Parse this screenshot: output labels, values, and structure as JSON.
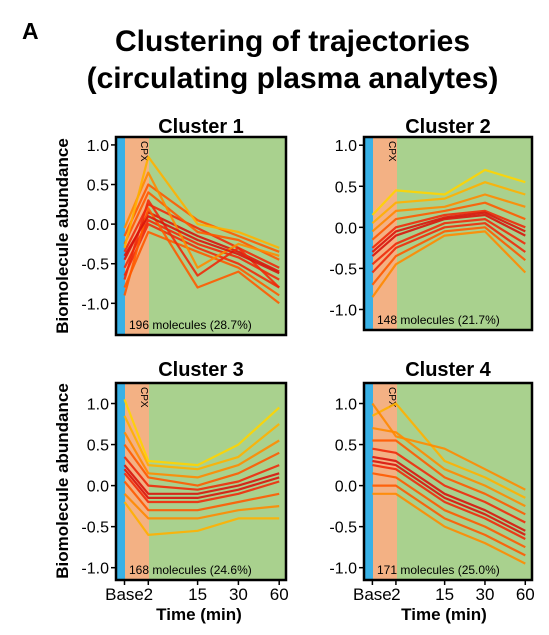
{
  "panel_letter": "A",
  "figure_title": {
    "line1": "Clustering of trajectories",
    "line2": "(circulating plasma analytes)"
  },
  "ylabel": "Biomolecule abundance",
  "xlabel": "Time (min)",
  "band_label": "CPX",
  "colors": {
    "background": "#a9d18e",
    "baseline_band": "#39b1e6",
    "cpx_band": "#f3b184",
    "frame": "#000000",
    "line_palette": [
      "#fff200",
      "#ffd400",
      "#ffb000",
      "#ff8a00",
      "#ff5a00",
      "#f02a0a",
      "#d8140c"
    ]
  },
  "chart_data": [
    {
      "type": "line",
      "title": "Cluster 1",
      "annotation": "196 molecules (28.7%)",
      "x": [
        "Base",
        "2",
        "15",
        "30",
        "60"
      ],
      "ylim": [
        -1.4,
        1.1
      ],
      "yticks": [
        "1.0",
        "0.5",
        "0.0",
        "-0.5",
        "-1.0"
      ],
      "series": [
        {
          "values": [
            -0.45,
            0.15,
            -0.15,
            -0.35,
            -0.6
          ]
        },
        {
          "values": [
            -0.35,
            0.25,
            -0.05,
            -0.3,
            -0.55
          ]
        },
        {
          "values": [
            -0.55,
            0.05,
            -0.25,
            -0.42,
            -0.7
          ]
        },
        {
          "values": [
            -0.25,
            0.4,
            -0.1,
            -0.2,
            -0.45
          ]
        },
        {
          "values": [
            -0.65,
            0.0,
            -0.3,
            -0.5,
            -0.8
          ]
        },
        {
          "values": [
            -0.15,
            0.5,
            0.05,
            -0.15,
            -0.35
          ]
        },
        {
          "values": [
            -0.8,
            -0.1,
            -0.35,
            -0.55,
            -0.9
          ]
        },
        {
          "values": [
            -0.05,
            0.65,
            -0.55,
            -0.25,
            -0.4
          ]
        },
        {
          "values": [
            -0.9,
            0.2,
            -0.8,
            -0.6,
            -1.0
          ]
        },
        {
          "values": [
            -0.3,
            0.85,
            0.0,
            -0.1,
            -0.3
          ]
        },
        {
          "values": [
            -0.7,
            0.3,
            -0.65,
            -0.3,
            -0.8
          ]
        },
        {
          "values": [
            -0.4,
            0.1,
            -0.2,
            -0.38,
            -0.62
          ]
        }
      ]
    },
    {
      "type": "line",
      "title": "Cluster 2",
      "annotation": "148 molecules (21.7%)",
      "x": [
        "Base",
        "2",
        "15",
        "30",
        "60"
      ],
      "ylim": [
        -1.25,
        1.1
      ],
      "yticks": [
        "1.0",
        "0.5",
        "0.0",
        "-0.5",
        "-1.0"
      ],
      "series": [
        {
          "values": [
            -0.35,
            -0.1,
            0.1,
            0.15,
            -0.1
          ]
        },
        {
          "values": [
            -0.25,
            0.0,
            0.15,
            0.2,
            0.0
          ]
        },
        {
          "values": [
            -0.45,
            -0.2,
            0.05,
            0.1,
            -0.2
          ]
        },
        {
          "values": [
            -0.15,
            0.1,
            0.2,
            0.3,
            0.1
          ]
        },
        {
          "values": [
            -0.55,
            -0.25,
            0.0,
            0.05,
            -0.3
          ]
        },
        {
          "values": [
            -0.05,
            0.2,
            0.25,
            0.4,
            0.25
          ]
        },
        {
          "values": [
            -0.7,
            -0.35,
            -0.05,
            0.0,
            -0.4
          ]
        },
        {
          "values": [
            0.05,
            0.3,
            0.35,
            0.55,
            0.4
          ]
        },
        {
          "values": [
            -0.85,
            -0.45,
            -0.1,
            -0.05,
            -0.55
          ]
        },
        {
          "values": [
            0.15,
            0.45,
            0.4,
            0.7,
            0.55
          ]
        },
        {
          "values": [
            -0.3,
            -0.05,
            0.12,
            0.18,
            -0.05
          ]
        }
      ]
    },
    {
      "type": "line",
      "title": "Cluster 3",
      "annotation": "168 molecules (24.6%)",
      "x": [
        "Base",
        "2",
        "15",
        "30",
        "60"
      ],
      "ylim": [
        -1.15,
        1.25
      ],
      "yticks": [
        "1.0",
        "0.5",
        "0.0",
        "-0.5",
        "-1.0"
      ],
      "series": [
        {
          "values": [
            0.25,
            -0.1,
            -0.1,
            0.0,
            0.15
          ]
        },
        {
          "values": [
            0.35,
            0.0,
            -0.05,
            0.05,
            0.25
          ]
        },
        {
          "values": [
            0.15,
            -0.2,
            -0.2,
            -0.1,
            0.05
          ]
        },
        {
          "values": [
            0.5,
            0.1,
            0.0,
            0.15,
            0.4
          ]
        },
        {
          "values": [
            0.05,
            -0.3,
            -0.3,
            -0.2,
            -0.1
          ]
        },
        {
          "values": [
            0.65,
            0.15,
            0.1,
            0.25,
            0.55
          ]
        },
        {
          "values": [
            -0.1,
            -0.4,
            -0.4,
            -0.3,
            -0.25
          ]
        },
        {
          "values": [
            0.85,
            0.25,
            0.2,
            0.35,
            0.75
          ]
        },
        {
          "values": [
            -0.2,
            -0.6,
            -0.55,
            -0.4,
            -0.4
          ]
        },
        {
          "values": [
            1.05,
            0.3,
            0.25,
            0.5,
            0.95
          ]
        },
        {
          "values": [
            0.2,
            -0.15,
            -0.15,
            -0.05,
            0.1
          ]
        }
      ]
    },
    {
      "type": "line",
      "title": "Cluster 4",
      "annotation": "171 molecules (25.0%)",
      "x": [
        "Base",
        "2",
        "15",
        "30",
        "60"
      ],
      "ylim": [
        -1.15,
        1.25
      ],
      "yticks": [
        "1.0",
        "0.5",
        "0.0",
        "-0.5",
        "-1.0"
      ],
      "series": [
        {
          "values": [
            0.35,
            0.3,
            -0.1,
            -0.3,
            -0.55
          ]
        },
        {
          "values": [
            0.45,
            0.4,
            0.0,
            -0.2,
            -0.45
          ]
        },
        {
          "values": [
            0.25,
            0.2,
            -0.2,
            -0.4,
            -0.65
          ]
        },
        {
          "values": [
            0.55,
            0.55,
            0.1,
            -0.1,
            -0.35
          ]
        },
        {
          "values": [
            0.15,
            0.1,
            -0.3,
            -0.5,
            -0.75
          ]
        },
        {
          "values": [
            0.7,
            0.65,
            0.2,
            0.0,
            -0.25
          ]
        },
        {
          "values": [
            0.0,
            0.0,
            -0.4,
            -0.6,
            -0.85
          ]
        },
        {
          "values": [
            0.85,
            1.0,
            0.3,
            0.1,
            -0.15
          ]
        },
        {
          "values": [
            -0.1,
            -0.1,
            -0.5,
            -0.7,
            -0.95
          ]
        },
        {
          "values": [
            1.0,
            0.6,
            0.45,
            0.2,
            -0.05
          ]
        },
        {
          "values": [
            0.3,
            0.25,
            -0.15,
            -0.35,
            -0.6
          ]
        }
      ]
    }
  ]
}
